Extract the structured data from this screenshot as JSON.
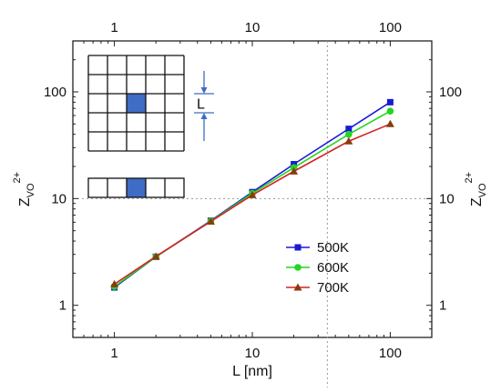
{
  "chart_data": {
    "type": "line",
    "xscale": "log",
    "yscale": "log",
    "xlim": [
      0.5,
      200
    ],
    "ylim": [
      0.5,
      300
    ],
    "xlabel": "L [nm]",
    "ylabel": "Z_VO^2+",
    "ylabel_parts": {
      "base": "Z",
      "sub": "VO",
      "sup": "2+"
    },
    "xticks": [
      1,
      10,
      100
    ],
    "xtick_labels": [
      "1",
      "10",
      "100"
    ],
    "yticks": [
      1,
      10,
      100
    ],
    "ytick_labels": [
      "1",
      "10",
      "100"
    ],
    "x": [
      1,
      2,
      5,
      10,
      20,
      50,
      100
    ],
    "series": [
      {
        "name": "500K",
        "color": "#1a1ad6",
        "marker": "square",
        "values": [
          1.47,
          2.85,
          6.2,
          11.5,
          21.0,
          45.0,
          80.0
        ]
      },
      {
        "name": "600K",
        "color": "#22d622",
        "marker": "circle",
        "values": [
          1.5,
          2.85,
          6.15,
          11.2,
          19.5,
          40.0,
          66.0
        ]
      },
      {
        "name": "700K",
        "color": "#d62222",
        "marker": "triangle",
        "marker_color": "#8b3a0f",
        "values": [
          1.58,
          2.87,
          6.1,
          10.8,
          18.0,
          34.5,
          50.0
        ]
      }
    ],
    "reference_lines": {
      "x": 35,
      "y": 10
    },
    "legend_position": "right",
    "grid": false,
    "inset": {
      "label": "L",
      "grid_rows": 5,
      "grid_cols": 5,
      "highlight_cell": [
        2,
        2
      ],
      "strip_cols": 5,
      "strip_highlight": 2,
      "fill_color": "#3f6cc4"
    }
  }
}
